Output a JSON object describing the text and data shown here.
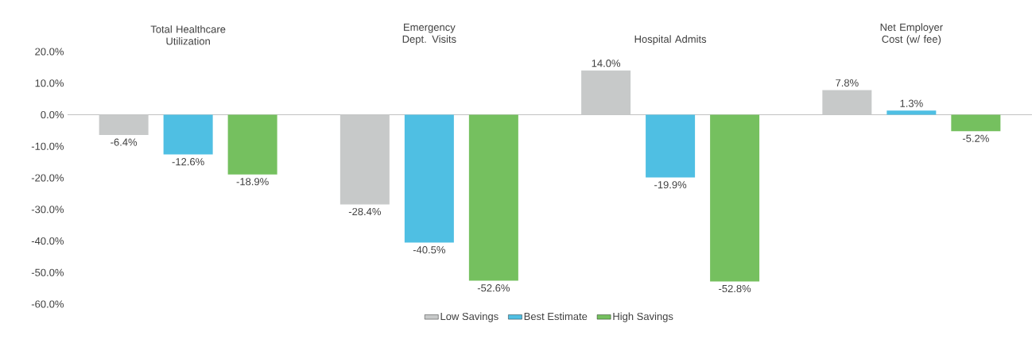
{
  "chart_data": {
    "type": "bar",
    "categories": [
      "Total Healthcare Utilization",
      "Emergency Dept. Visits",
      "Hospital Admits",
      "Net Employer Cost (w/ fee)"
    ],
    "ylim": [
      -60,
      20
    ],
    "yticks": [
      {
        "value": -60,
        "label": "-60.0%"
      },
      {
        "value": -50,
        "label": "-50.0%"
      },
      {
        "value": -40,
        "label": "-40.0%"
      },
      {
        "value": -30,
        "label": "-30.0%"
      },
      {
        "value": -20,
        "label": "-20.0%"
      },
      {
        "value": -10,
        "label": "-10.0%"
      },
      {
        "value": 0,
        "label": "0.0%"
      },
      {
        "value": 10,
        "label": "10.0%"
      },
      {
        "value": 20,
        "label": "20.0%"
      }
    ],
    "series": [
      {
        "name": "Low Savings",
        "color": "#c7c9c9",
        "values": [
          -6.4,
          -28.4,
          14.0,
          7.8
        ],
        "value_labels": [
          "-6.4%",
          "-28.4%",
          "14.0%",
          "7.8%"
        ]
      },
      {
        "name": "Best Estimate",
        "color": "#4fbfe3",
        "values": [
          -12.6,
          -40.5,
          -19.9,
          1.3
        ],
        "value_labels": [
          "-12.6%",
          "-40.5%",
          "-19.9%",
          "1.3%"
        ]
      },
      {
        "name": "High Savings",
        "color": "#75c05f",
        "values": [
          -18.9,
          -52.6,
          -52.8,
          -5.2
        ],
        "value_labels": [
          "-18.9%",
          "-52.6%",
          "-52.8%",
          "-5.2%"
        ]
      }
    ],
    "legend": "bottom"
  }
}
